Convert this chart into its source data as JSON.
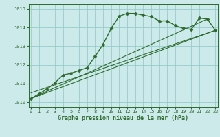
{
  "title": "Graphe pression niveau de la mer (hPa)",
  "bg_color": "#cceaea",
  "grid_color": "#99cccc",
  "line_color": "#2d6a2d",
  "xlim": [
    -0.3,
    23.3
  ],
  "ylim": [
    1009.75,
    1015.25
  ],
  "yticks": [
    1010,
    1011,
    1012,
    1013,
    1014,
    1015
  ],
  "xticks": [
    0,
    1,
    2,
    3,
    4,
    5,
    6,
    7,
    8,
    9,
    10,
    11,
    12,
    13,
    14,
    15,
    16,
    17,
    18,
    19,
    20,
    21,
    22,
    23
  ],
  "main_x": [
    0,
    1,
    2,
    3,
    4,
    5,
    6,
    7,
    8,
    9,
    10,
    11,
    12,
    13,
    14,
    15,
    16,
    17,
    18,
    19,
    20,
    21,
    22,
    23
  ],
  "main_y": [
    1010.2,
    1010.45,
    1010.7,
    1011.05,
    1011.45,
    1011.55,
    1011.7,
    1011.85,
    1012.45,
    1013.1,
    1013.95,
    1014.6,
    1014.75,
    1014.75,
    1014.65,
    1014.58,
    1014.35,
    1014.35,
    1014.1,
    1013.95,
    1013.9,
    1014.5,
    1014.45,
    1013.85
  ],
  "straight_lines": [
    {
      "x": [
        0,
        23
      ],
      "y": [
        1010.2,
        1013.85
      ]
    },
    {
      "x": [
        0,
        22
      ],
      "y": [
        1010.2,
        1014.45
      ]
    },
    {
      "x": [
        0,
        23
      ],
      "y": [
        1010.5,
        1013.85
      ]
    }
  ],
  "marker": "D",
  "markersize": 2.5,
  "linewidth": 1.0,
  "tick_fontsize": 5.0,
  "xlabel_fontsize": 6.0
}
